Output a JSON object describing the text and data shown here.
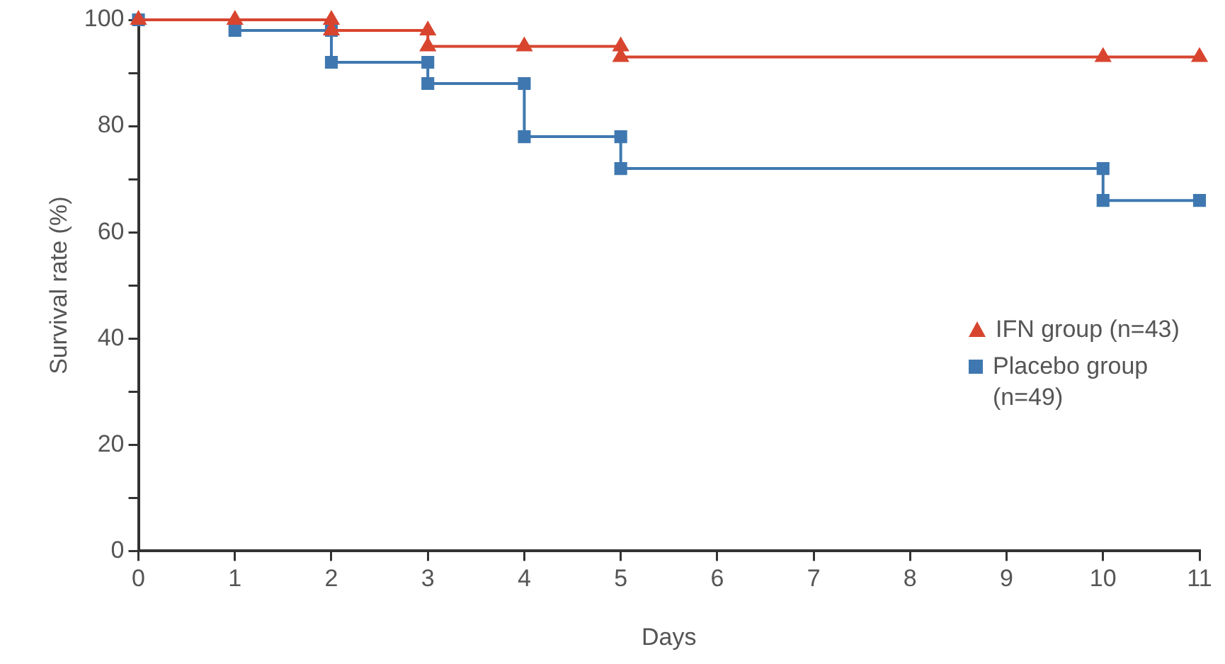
{
  "chart_data": {
    "type": "step",
    "xlabel": "Days",
    "ylabel": "Survival rate (%)",
    "xlim": [
      0,
      11
    ],
    "xticks": [
      0,
      1,
      2,
      3,
      4,
      5,
      6,
      7,
      8,
      9,
      10,
      11
    ],
    "ylim": [
      0,
      100
    ],
    "yticks": [
      0,
      {
        "value": 10,
        "label": null
      },
      20,
      {
        "value": 30,
        "label": null
      },
      40,
      {
        "value": 50,
        "label": null
      },
      60,
      {
        "value": 70,
        "label": null
      },
      80,
      {
        "value": 90,
        "label": null
      },
      100
    ],
    "grid": false,
    "legend": "right",
    "line_style": "solid",
    "series": [
      {
        "name": "IFN group (n=43)",
        "color": "#d8452f",
        "marker": "triangle",
        "x": [
          0,
          1,
          2,
          2,
          3,
          3,
          4,
          5,
          5,
          10,
          11
        ],
        "values": [
          100,
          100,
          100,
          98,
          98,
          95,
          95,
          95,
          93,
          93,
          93
        ]
      },
      {
        "name": "Placebo group (n=49)",
        "color": "#3f78b0",
        "marker": "square",
        "x": [
          0,
          1,
          2,
          2,
          3,
          3,
          4,
          4,
          5,
          5,
          10,
          10,
          11
        ],
        "values": [
          100,
          98,
          98,
          92,
          92,
          88,
          88,
          78,
          78,
          72,
          72,
          66,
          66
        ]
      }
    ]
  }
}
